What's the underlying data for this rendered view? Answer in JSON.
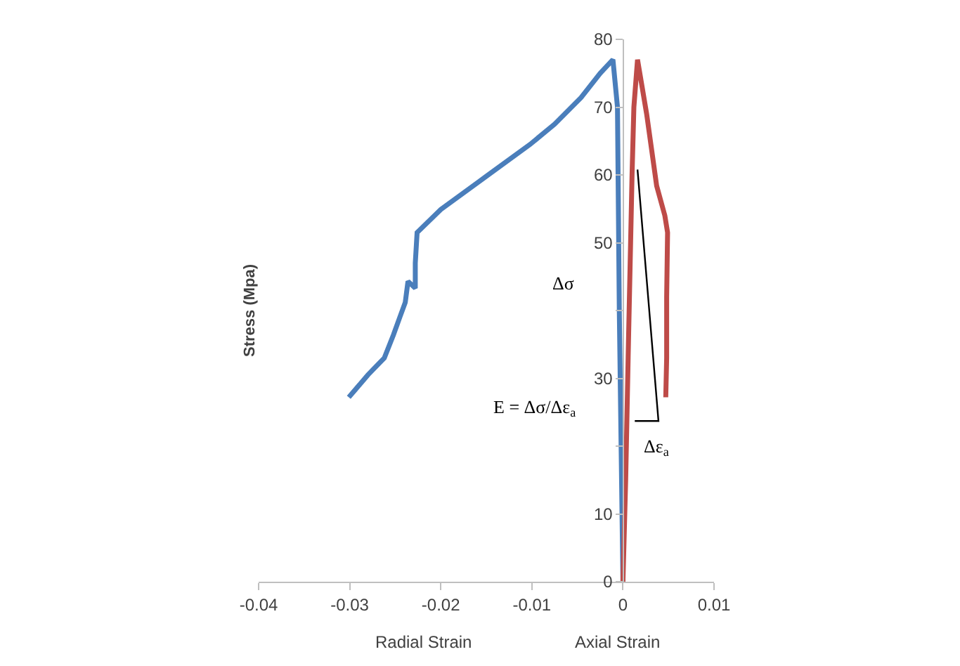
{
  "chart_data": {
    "type": "line",
    "xlabel": "Radial Strain",
    "ylabel": "Stress (Mpa)",
    "xlim": [
      -0.04,
      0.01
    ],
    "xticks": [
      -0.04,
      -0.03,
      -0.02,
      -0.01,
      0,
      0.01
    ],
    "ylim": [
      0,
      80
    ],
    "yticks": [
      0,
      10,
      {
        "value": 20,
        "label": null
      },
      30,
      {
        "value": 40,
        "label": null
      },
      50,
      60,
      70,
      80
    ],
    "marker": "none",
    "line_style": "solid",
    "series": [
      {
        "color": "#4a7ebb",
        "x": [
          0,
          -0.0002,
          -0.0004,
          -0.0006,
          -0.0011,
          -0.0025,
          -0.0046,
          -0.0075,
          -0.0102,
          -0.015,
          -0.02,
          -0.0226,
          -0.0228,
          -0.0228,
          -0.0236,
          -0.0239,
          -0.0245,
          -0.0252,
          -0.0262,
          -0.028,
          -0.0301
        ],
        "values": [
          0,
          20,
          40,
          70,
          77,
          75,
          71.4,
          67.5,
          64.5,
          59.8,
          54.9,
          51.5,
          47,
          43.3,
          44.3,
          41.2,
          39,
          36.4,
          33,
          30.5,
          27.2
        ]
      },
      {
        "color": "#be4b48",
        "x": [
          0,
          0.0003,
          0.0006,
          0.001,
          0.0012,
          0.0016,
          0.0026,
          0.0037,
          0.0046,
          0.0049,
          0.0048,
          0.0048,
          0.0047
        ],
        "values": [
          0,
          15,
          35,
          60,
          70,
          77,
          69,
          58.4,
          54,
          51.5,
          42,
          33,
          27.2
        ]
      },
      {
        "color": "#000000",
        "x": [
          0.0016,
          0.0039,
          0.0013
        ],
        "values": [
          60.8,
          23.7,
          23.7
        ]
      }
    ],
    "annotations": [
      "Δσ",
      "E = Δσ/Δε$_{a}$",
      "Δε$_{a}$",
      "Axial Strain"
    ]
  }
}
